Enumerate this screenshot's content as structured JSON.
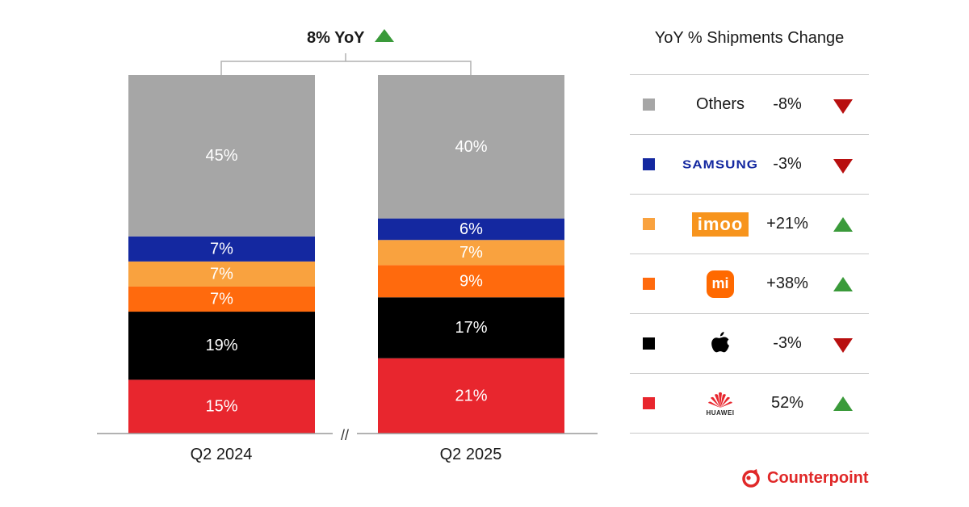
{
  "chart_data": {
    "type": "bar",
    "stacked": true,
    "percent_stacked": true,
    "categories": [
      "Q2 2024",
      "Q2 2025"
    ],
    "series": [
      {
        "name": "Huawei",
        "values": [
          15,
          21
        ],
        "color": "#e8262e",
        "label_color": "#ffffff"
      },
      {
        "name": "Apple",
        "values": [
          19,
          17
        ],
        "color": "#000000",
        "label_color": "#ffffff"
      },
      {
        "name": "Xiaomi",
        "values": [
          7,
          9
        ],
        "color": "#ff6a0d",
        "label_color": "#ffffff"
      },
      {
        "name": "imoo",
        "values": [
          7,
          7
        ],
        "color": "#f9a23f",
        "label_color": "#ffffff"
      },
      {
        "name": "Samsung",
        "values": [
          7,
          6
        ],
        "color": "#1428a0",
        "label_color": "#ffffff"
      },
      {
        "name": "Others",
        "values": [
          45,
          40
        ],
        "color": "#a6a6a6",
        "label_color": "#ffffff"
      }
    ],
    "labels": [
      [
        "15%",
        "19%",
        "7%",
        "7%",
        "7%",
        "45%"
      ],
      [
        "21%",
        "17%",
        "9%",
        "7%",
        "6%",
        "40%"
      ]
    ],
    "yoy_annotation": "8% YoY",
    "axis_break": "//",
    "legend_title": "YoY % Shipments Change"
  },
  "legend": {
    "title": "YoY % Shipments Change",
    "rows": [
      {
        "brand": "Others",
        "swatch_color": "#a6a6a6",
        "change": "-8%",
        "direction": "down"
      },
      {
        "brand": "SAMSUNG",
        "swatch_color": "#1428a0",
        "change": "-3%",
        "direction": "down"
      },
      {
        "brand": "imoo",
        "swatch_color": "#f9a23f",
        "change": "+21%",
        "direction": "up"
      },
      {
        "brand": "mi",
        "swatch_color": "#ff6a0d",
        "change": "+38%",
        "direction": "up"
      },
      {
        "brand": "apple-icon",
        "swatch_color": "#000000",
        "change": "-3%",
        "direction": "down"
      },
      {
        "brand": "HUAWEI",
        "swatch_color": "#e8262e",
        "change": "52%",
        "direction": "up"
      }
    ]
  },
  "colors": {
    "up_arrow": "#3a9a3a",
    "down_arrow": "#b80f0f",
    "brand_red": "#e02828"
  },
  "footer": {
    "logo_text": "Counterpoint"
  }
}
